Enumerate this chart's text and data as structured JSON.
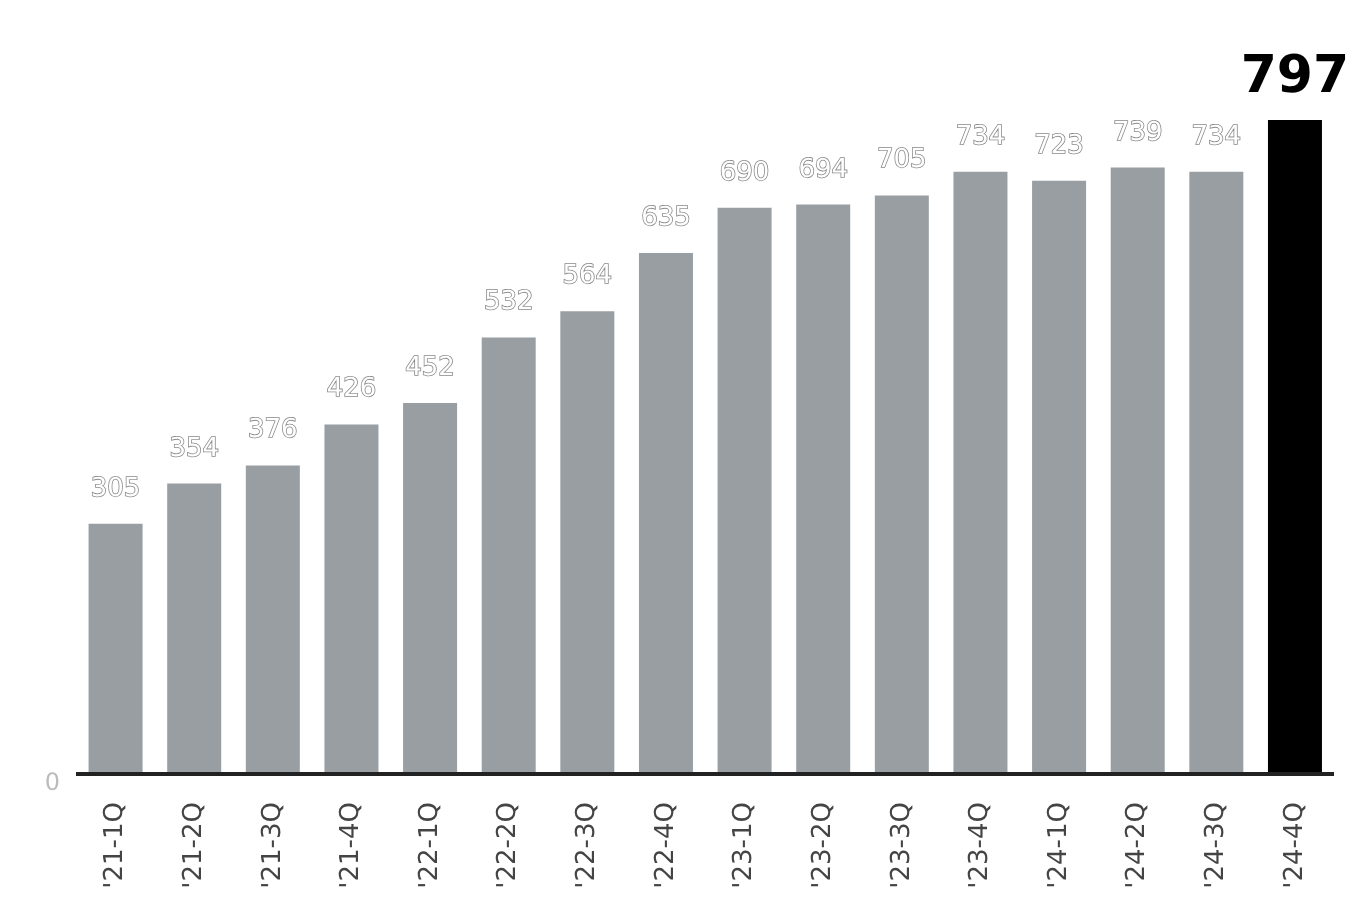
{
  "chart_data": {
    "type": "bar",
    "categories": [
      "'21-1Q",
      "'21-2Q",
      "'21-3Q",
      "'21-4Q",
      "'22-1Q",
      "'22-2Q",
      "'22-3Q",
      "'22-4Q",
      "'23-1Q",
      "'23-2Q",
      "'23-3Q",
      "'23-4Q",
      "'24-1Q",
      "'24-2Q",
      "'24-3Q",
      "'24-4Q"
    ],
    "values": [
      305,
      354,
      376,
      426,
      452,
      532,
      564,
      635,
      690,
      694,
      705,
      734,
      723,
      739,
      734,
      797
    ],
    "colors": [
      "#989ea2",
      "#989ea2",
      "#989ea2",
      "#989ea2",
      "#989ea2",
      "#989ea2",
      "#989ea2",
      "#989ea2",
      "#989ea2",
      "#989ea2",
      "#989ea2",
      "#989ea2",
      "#989ea2",
      "#989ea2",
      "#989ea2",
      "#000000"
    ],
    "annotations": [
      "0"
    ],
    "grid": false,
    "data_labels": true
  }
}
